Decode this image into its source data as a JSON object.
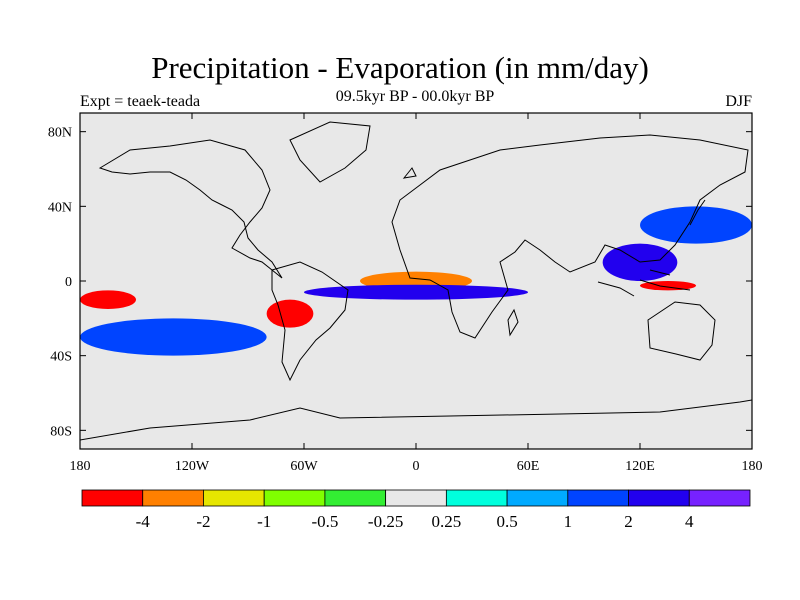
{
  "title": "Precipitation - Evaporation (in mm/day)",
  "subtitle": "09.5kyr BP - 00.0kyr BP",
  "left_label": "Expt = teaek-teada",
  "right_label": "DJF",
  "chart_data": {
    "type": "heatmap",
    "map": "global lat-lon map, cylindrical equidistant",
    "x_axis": {
      "ticks": [
        "180",
        "120W",
        "60W",
        "0",
        "60E",
        "120E",
        "180"
      ],
      "values": [
        -180,
        -120,
        -60,
        0,
        60,
        120,
        180
      ]
    },
    "y_axis": {
      "ticks": [
        "80N",
        "40N",
        "0",
        "40S",
        "80S"
      ],
      "values": [
        80,
        40,
        0,
        -40,
        -80
      ]
    },
    "colorbar": {
      "levels": [
        "-4",
        "-2",
        "-1",
        "-0.5",
        "-0.25",
        "0.25",
        "0.5",
        "1",
        "2",
        "4"
      ],
      "colors": [
        "#ff0000",
        "#ff8000",
        "#e6e600",
        "#80ff00",
        "#33ee33",
        "#e8e8e8",
        "#00ffdd",
        "#00aaff",
        "#0044ff",
        "#2200ee",
        "#7722ff"
      ]
    },
    "land_color": "#e8e8e8",
    "regions": [
      {
        "lon": [
          -180,
          -150
        ],
        "lat": [
          -5,
          -15
        ],
        "level": "-4"
      },
      {
        "lon": [
          -80,
          -55
        ],
        "lat": [
          -10,
          -25
        ],
        "level": "-4"
      },
      {
        "lon": [
          -30,
          30
        ],
        "lat": [
          5,
          -5
        ],
        "level": "-2"
      },
      {
        "lon": [
          120,
          150
        ],
        "lat": [
          0,
          -5
        ],
        "level": "-4"
      },
      {
        "lon": [
          -180,
          -80
        ],
        "lat": [
          -20,
          -40
        ],
        "level": "1"
      },
      {
        "lon": [
          -60,
          60
        ],
        "lat": [
          -2,
          -10
        ],
        "level": "2"
      },
      {
        "lon": [
          100,
          140
        ],
        "lat": [
          20,
          0
        ],
        "level": "2"
      },
      {
        "lon": [
          120,
          180
        ],
        "lat": [
          40,
          20
        ],
        "level": "1"
      }
    ]
  }
}
